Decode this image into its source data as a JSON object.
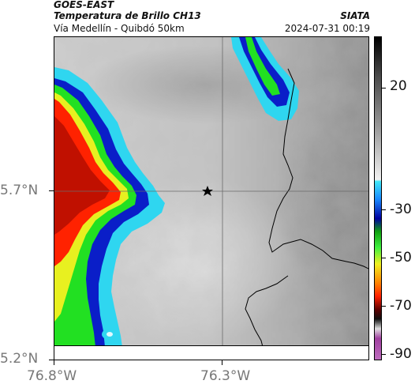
{
  "header": {
    "satellite": "GOES-EAST",
    "product": "Temperatura de Brillo CH13",
    "source": "SIATA",
    "route": "Vía Medellín - Quibdó 50km",
    "datetime": "2024-07-31 00:19"
  },
  "map": {
    "lat_labels": [
      "5.7°N",
      "5.2°N"
    ],
    "lon_labels": [
      "76.8°W",
      "76.3°W"
    ],
    "lat_range": [
      5.2,
      5.9
    ],
    "lon_range": [
      -76.8,
      -76.1
    ],
    "gridlines": true,
    "marker": "star",
    "colors": {
      "gray_warm": "#c8c8c8",
      "gray_cool": "#8a8a8a",
      "cyan": "#2fd6f0",
      "blue": "#0010c8",
      "green": "#22e022",
      "yellow": "#e8f020",
      "red": "#ff2000",
      "dark_red": "#700000",
      "magenta": "#c850c8",
      "border_line": "#000000"
    }
  },
  "colorbar": {
    "unit_ticks": [
      "20",
      "-30",
      "-50",
      "-70",
      "-90"
    ],
    "range": [
      -95,
      40
    ]
  }
}
